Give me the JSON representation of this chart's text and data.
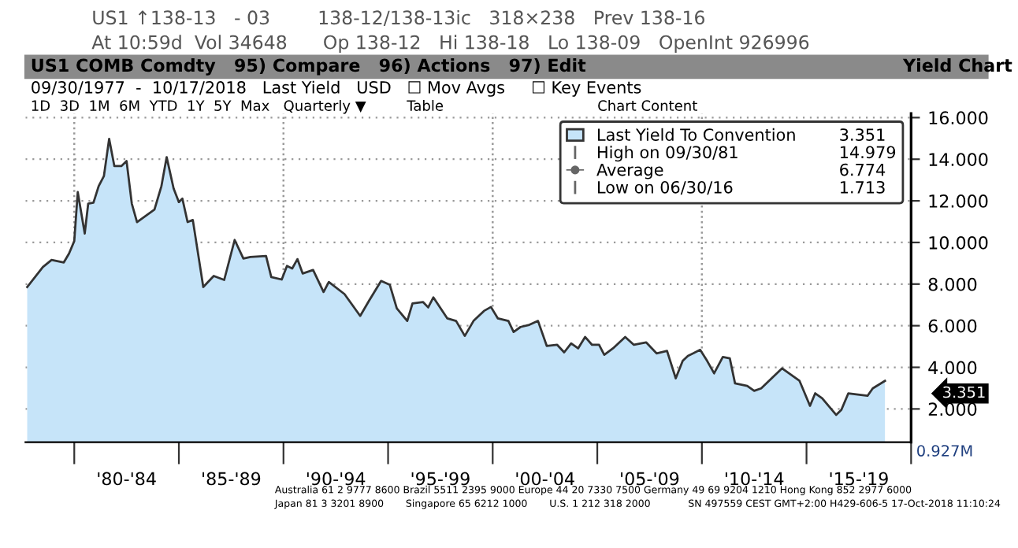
{
  "chart_data": {
    "type": "area",
    "x": [
      "1977-10",
      "1978-07",
      "1978-12",
      "1979-07",
      "1979-10",
      "1980-01",
      "1980-03",
      "1980-07",
      "1980-09",
      "1980-12",
      "1981-03",
      "1981-06",
      "1981-09",
      "1981-12",
      "1982-04",
      "1982-07",
      "1982-10",
      "1983-01",
      "1983-11",
      "1984-03",
      "1984-06",
      "1984-10",
      "1985-01",
      "1985-03",
      "1985-06",
      "1985-09",
      "1986-03",
      "1986-09",
      "1987-03",
      "1987-09",
      "1988-02",
      "1988-06",
      "1989-03",
      "1989-06",
      "1989-12",
      "1990-03",
      "1990-06",
      "1990-09",
      "1990-12",
      "1991-06",
      "1991-12",
      "1992-03",
      "1992-12",
      "1993-09",
      "1994-02",
      "1994-09",
      "1995-02",
      "1995-06",
      "1995-12",
      "1996-03",
      "1996-09",
      "1996-12",
      "1997-03",
      "1997-11",
      "1998-04",
      "1998-09",
      "1999-02",
      "1999-08",
      "1999-12",
      "2000-04",
      "2000-10",
      "2001-01",
      "2001-05",
      "2001-10",
      "2002-03",
      "2002-08",
      "2003-02",
      "2003-06",
      "2003-10",
      "2004-02",
      "2004-06",
      "2004-10",
      "2005-02",
      "2005-05",
      "2005-10",
      "2006-05",
      "2006-10",
      "2007-05",
      "2007-11",
      "2008-05",
      "2008-10",
      "2009-02",
      "2009-05",
      "2009-08",
      "2009-12",
      "2010-04",
      "2010-08",
      "2011-01",
      "2011-05",
      "2011-08",
      "2012-03",
      "2012-07",
      "2012-11",
      "2013-11",
      "2014-09",
      "2015-03",
      "2015-06",
      "2015-10",
      "2016-06",
      "2016-09",
      "2017-01",
      "2017-12",
      "2018-03",
      "2018-10"
    ],
    "series": [
      {
        "name": "Last Yield To Convention",
        "color": "#c6e4f9",
        "values": [
          7.86,
          8.82,
          9.16,
          9.04,
          9.47,
          10.07,
          12.42,
          10.43,
          11.87,
          11.91,
          12.71,
          13.19,
          14.979,
          13.67,
          13.67,
          13.91,
          11.87,
          10.98,
          11.58,
          12.71,
          14.1,
          12.59,
          11.94,
          12.11,
          10.98,
          11.08,
          7.86,
          8.39,
          8.2,
          10.12,
          9.23,
          9.3,
          9.35,
          8.34,
          8.22,
          8.87,
          8.75,
          9.2,
          8.51,
          8.68,
          7.62,
          8.1,
          7.52,
          6.47,
          7.19,
          8.15,
          7.96,
          6.83,
          6.23,
          7.07,
          7.14,
          6.88,
          7.36,
          6.35,
          6.23,
          5.51,
          6.23,
          6.71,
          6.9,
          6.35,
          6.23,
          5.7,
          5.94,
          6.04,
          6.23,
          5.03,
          5.08,
          4.72,
          5.15,
          4.91,
          5.46,
          5.08,
          5.08,
          4.6,
          4.91,
          5.46,
          5.08,
          5.2,
          4.67,
          4.79,
          3.47,
          4.31,
          4.55,
          4.67,
          4.84,
          4.31,
          3.71,
          4.5,
          4.43,
          3.23,
          3.11,
          2.87,
          2.99,
          3.95,
          3.35,
          2.15,
          2.75,
          2.51,
          1.713,
          1.96,
          2.75,
          2.63,
          2.99,
          3.351
        ]
      }
    ],
    "xlim": [
      "1977-09",
      "2020-01"
    ],
    "xticks": [
      {
        "value": "1980-01",
        "label": null
      },
      {
        "value": "1982-07",
        "label": "'80-'84"
      },
      {
        "value": "1985-01",
        "label": null
      },
      {
        "value": "1987-07",
        "label": "'85-'89"
      },
      {
        "value": "1990-01",
        "label": null
      },
      {
        "value": "1992-07",
        "label": "'90-'94"
      },
      {
        "value": "1995-01",
        "label": null
      },
      {
        "value": "1997-07",
        "label": "'95-'99"
      },
      {
        "value": "2000-01",
        "label": null
      },
      {
        "value": "2002-07",
        "label": "'00-'04"
      },
      {
        "value": "2005-01",
        "label": null
      },
      {
        "value": "2007-07",
        "label": "'05-'09"
      },
      {
        "value": "2010-01",
        "label": null
      },
      {
        "value": "2012-07",
        "label": "'10-'14"
      },
      {
        "value": "2015-01",
        "label": null
      },
      {
        "value": "2017-07",
        "label": "'15-'19"
      },
      {
        "value": "2020-01",
        "label": null
      }
    ],
    "ylim": [
      0.4,
      16.2
    ],
    "yticks": [
      {
        "value": 2,
        "label": "2.000"
      },
      {
        "value": 4,
        "label": "4.000"
      },
      {
        "value": 6,
        "label": "6.000"
      },
      {
        "value": 8,
        "label": "8.000"
      },
      {
        "value": 10,
        "label": "10.000"
      },
      {
        "value": 12,
        "label": "12.000"
      },
      {
        "value": 14,
        "label": "14.000"
      },
      {
        "value": 16,
        "label": "16.000"
      }
    ],
    "grid": "y",
    "ref_lines": [
      {
        "axis": "x",
        "value": "1980-01",
        "line_style": "dotted"
      },
      {
        "axis": "x",
        "value": "1990-01",
        "line_style": "dotted"
      },
      {
        "axis": "x",
        "value": "2000-01",
        "line_style": "dotted"
      },
      {
        "axis": "x",
        "value": "2010-01",
        "line_style": "dotted"
      }
    ],
    "legend": "top right",
    "annotations": [
      "US1 ↑138-13   - 03        138-12/138-13ic   318×238   Prev 138-16",
      "At 10:59d  Vol 34648      Op 138-12   Hi 138-18   Lo 138-09   OpenInt 926996",
      "US1 COMB Comdty   95) Compare   96) Actions   97) Edit                                                    Yield Chart",
      "09/30/1977  -  10/17/2018   Last Yield   USD   ☐ Mov Avgs     ☐ Key Events",
      "1D  3D  1M  6M  YTD  1Y  5Y  Max   Quarterly ▼         Table                                  Chart Content",
      "High on 09/30/81",
      "Average",
      "Low on 06/30/16",
      "3.351",
      "14.979",
      "6.774",
      "1.713",
      "3.351",
      "0.927M",
      "Australia 61 2 9777 8600 Brazil 5511 2395 9000 Europe 44 20 7330 7500 Germany 49 69 9204 1210 Hong Kong 852 2977 6000",
      "Japan 81 3 3201 8900       Singapore 65 6212 1000       U.S. 1 212 318 2000            SN 497559 CEST GMT+2:00 H429-606-5 17-Oct-2018 11:10:24"
    ]
  }
}
